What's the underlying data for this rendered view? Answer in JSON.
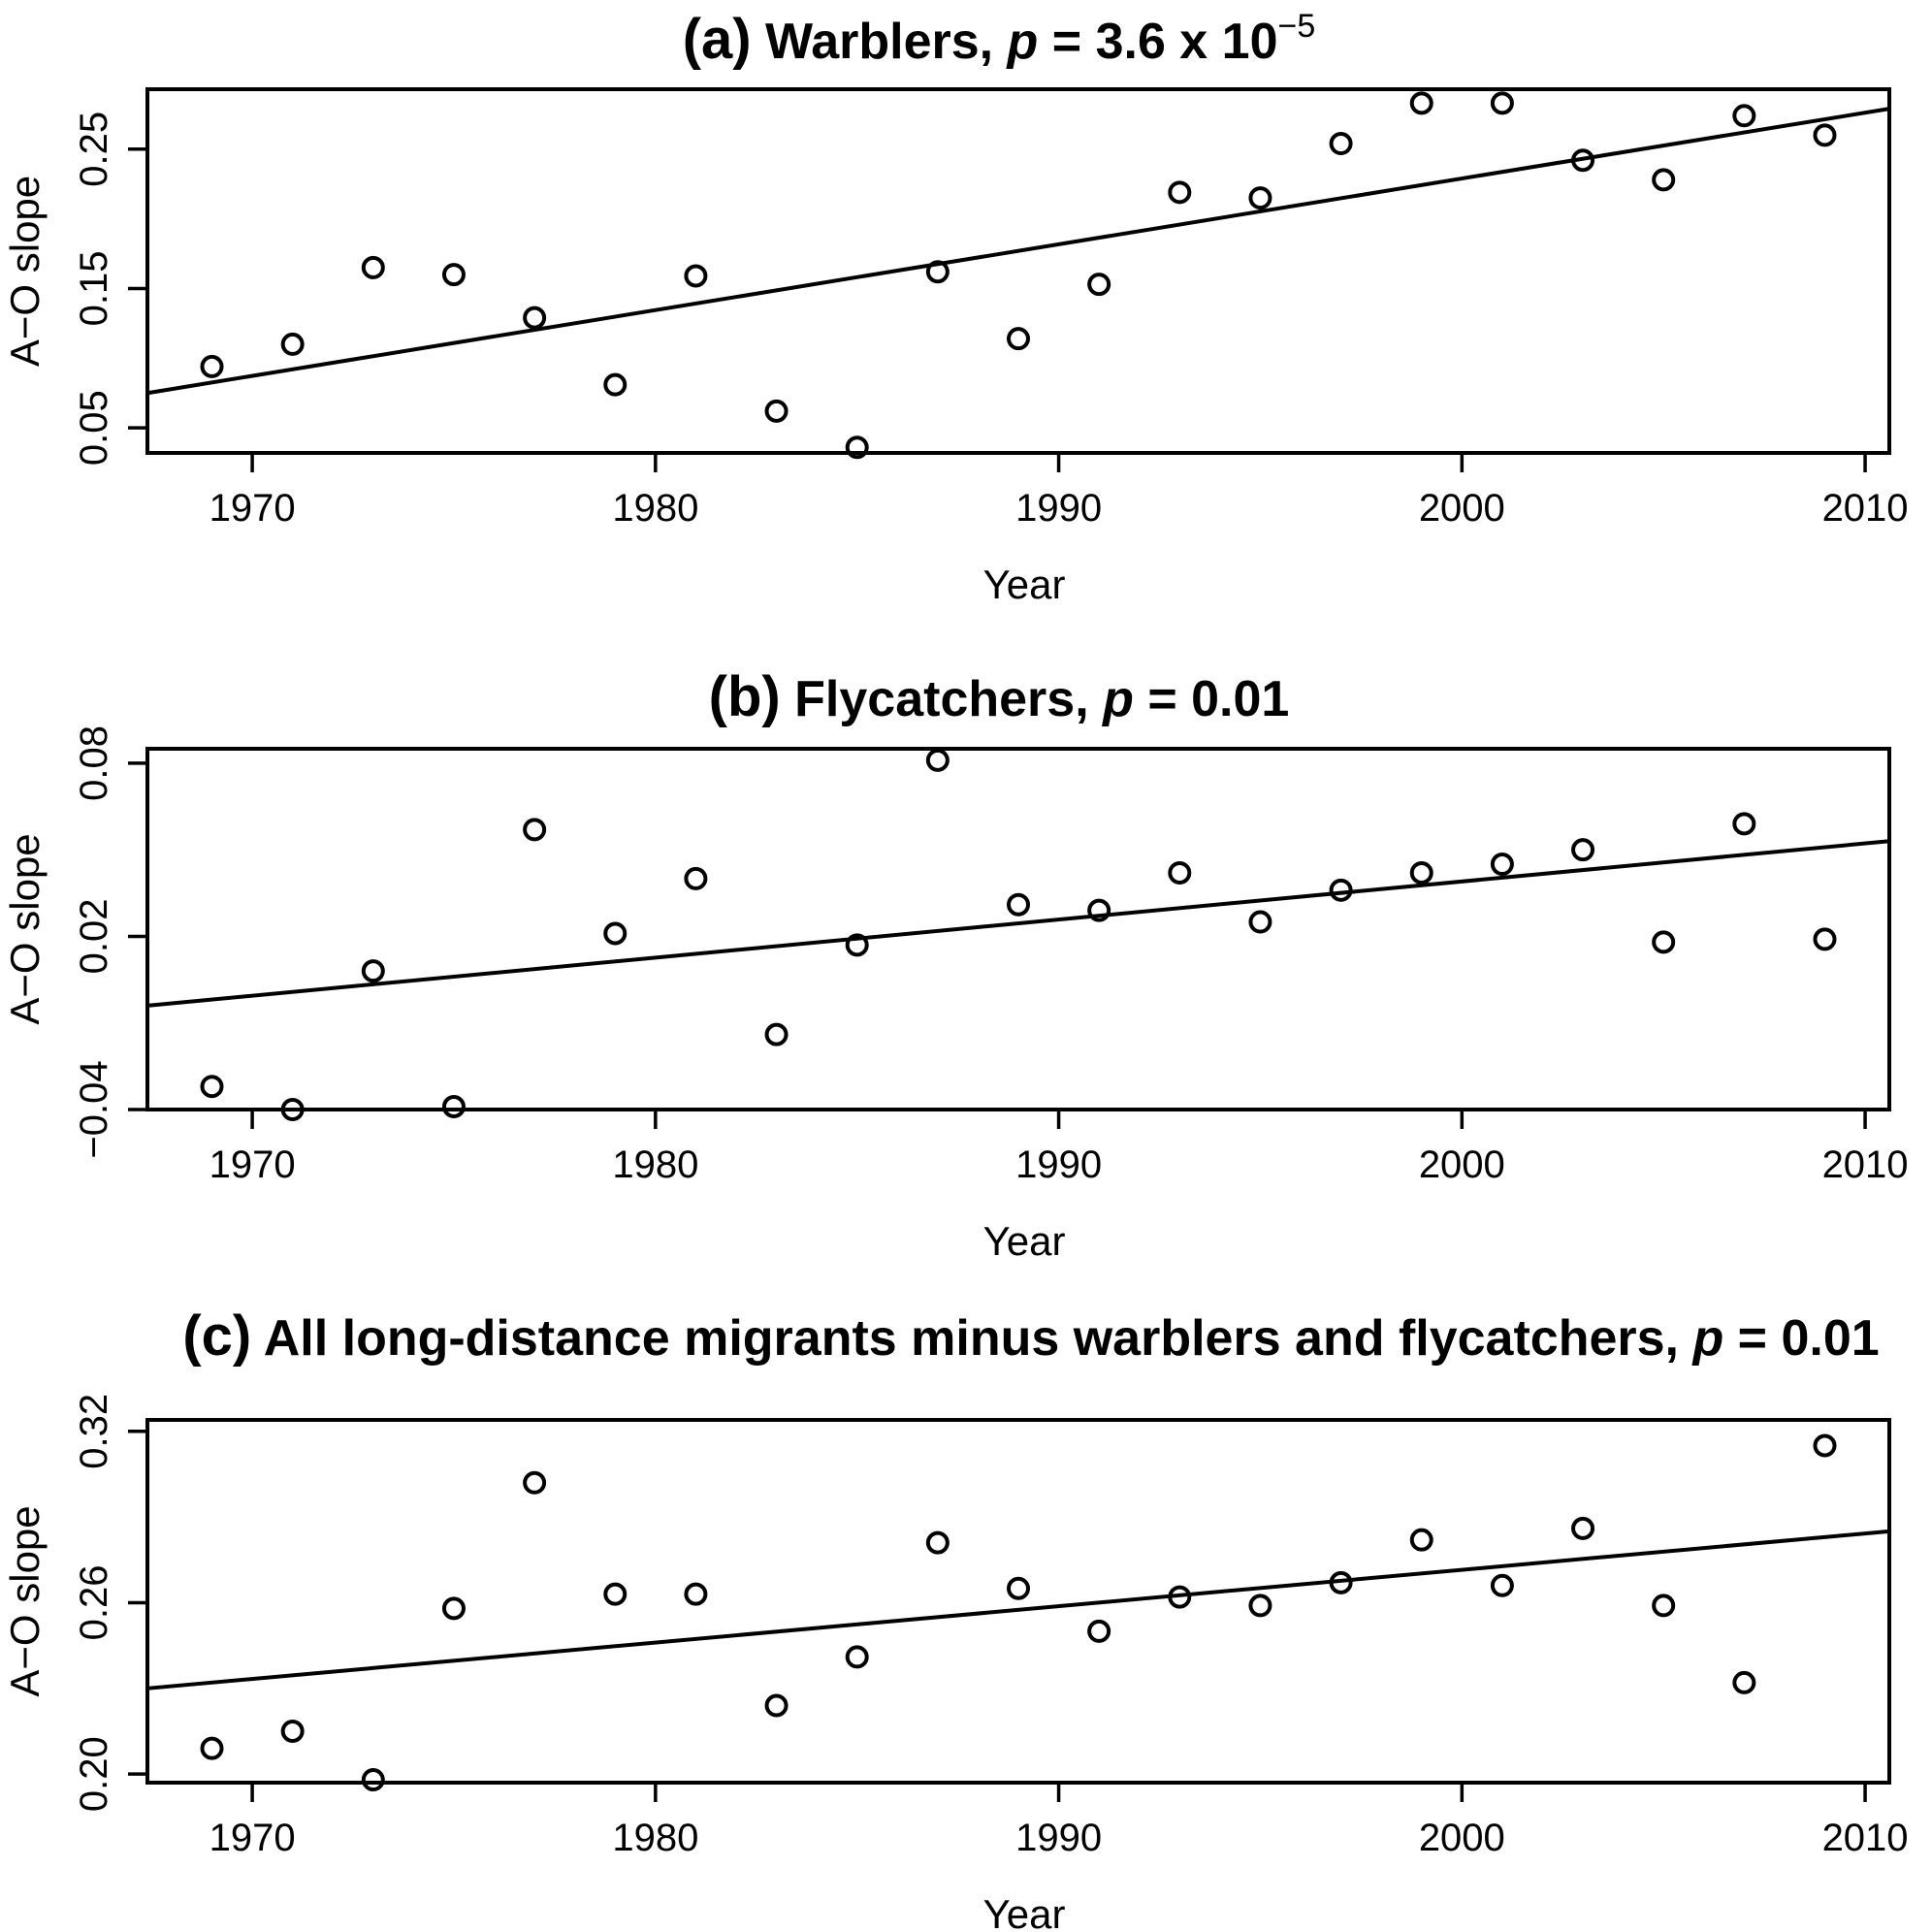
{
  "chart_data": [
    {
      "type": "scatter",
      "title_prefix": "(a)",
      "title_text": "Warblers, ",
      "title_p": "p",
      "title_value": " = 3.6 x 10",
      "title_superscript": "−5",
      "xlabel": "Year",
      "ylabel": "A−O slope",
      "xlim": [
        1967.4,
        2010.6
      ],
      "ylim": [
        0.032,
        0.293
      ],
      "xticks": [
        "1970",
        "1980",
        "1990",
        "2000",
        "2010"
      ],
      "yticks": [
        "0.05",
        "0.15",
        "0.25"
      ],
      "x": [
        1969,
        1971,
        1973,
        1975,
        1977,
        1979,
        1981,
        1983,
        1985,
        1987,
        1989,
        1991,
        1993,
        1995,
        1997,
        1999,
        2001,
        2003,
        2005,
        2007,
        2009
      ],
      "y": [
        0.094,
        0.11,
        0.165,
        0.16,
        0.129,
        0.081,
        0.159,
        0.062,
        0.036,
        0.162,
        0.114,
        0.153,
        0.219,
        0.215,
        0.254,
        0.283,
        0.283,
        0.242,
        0.228,
        0.274,
        0.26
      ],
      "trend": {
        "x": [
          1967.4,
          2010.6
        ],
        "y": [
          0.075,
          0.279
        ]
      },
      "grid": false
    },
    {
      "type": "scatter",
      "title_prefix": "(b)",
      "title_text": "Flycatchers, ",
      "title_p": "p",
      "title_value": " = 0.01",
      "title_superscript": "",
      "xlabel": "Year",
      "ylabel": "A−O slope",
      "xlim": [
        1967.4,
        2010.6
      ],
      "ylim": [
        -0.04,
        0.085
      ],
      "xticks": [
        "1970",
        "1980",
        "1990",
        "2000",
        "2010"
      ],
      "yticks": [
        "−0.04",
        "0.02",
        "0.08"
      ],
      "x": [
        1969,
        1971,
        1973,
        1975,
        1977,
        1979,
        1981,
        1983,
        1985,
        1987,
        1989,
        1991,
        1993,
        1995,
        1997,
        1999,
        2001,
        2003,
        2005,
        2007,
        2009
      ],
      "y": [
        -0.032,
        -0.04,
        0.008,
        -0.039,
        0.057,
        0.021,
        0.04,
        -0.014,
        0.017,
        0.081,
        0.031,
        0.029,
        0.042,
        0.025,
        0.036,
        0.042,
        0.045,
        0.05,
        0.018,
        0.059,
        0.019
      ],
      "trend": {
        "x": [
          1967.4,
          2010.6
        ],
        "y": [
          -0.004,
          0.053
        ]
      },
      "grid": false
    },
    {
      "type": "scatter",
      "title_prefix": "(c)",
      "title_text": "All long-distance migrants minus warblers and flycatchers, ",
      "title_p": "p",
      "title_value": " = 0.01",
      "title_superscript": "",
      "xlabel": "Year",
      "ylabel": "A−O slope",
      "xlim": [
        1967.4,
        2010.6
      ],
      "ylim": [
        0.197,
        0.324
      ],
      "xticks": [
        "1970",
        "1980",
        "1990",
        "2000",
        "2010"
      ],
      "yticks": [
        "0.20",
        "0.26",
        "0.32"
      ],
      "x": [
        1969,
        1971,
        1973,
        1975,
        1977,
        1979,
        1981,
        1983,
        1985,
        1987,
        1989,
        1991,
        1993,
        1995,
        1997,
        1999,
        2001,
        2003,
        2005,
        2007,
        2009
      ],
      "y": [
        0.209,
        0.215,
        0.198,
        0.258,
        0.302,
        0.263,
        0.263,
        0.224,
        0.241,
        0.281,
        0.265,
        0.25,
        0.262,
        0.259,
        0.267,
        0.282,
        0.266,
        0.286,
        0.259,
        0.232,
        0.315
      ],
      "trend": {
        "x": [
          1967.4,
          2010.6
        ],
        "y": [
          0.23,
          0.285
        ]
      },
      "grid": false
    }
  ]
}
